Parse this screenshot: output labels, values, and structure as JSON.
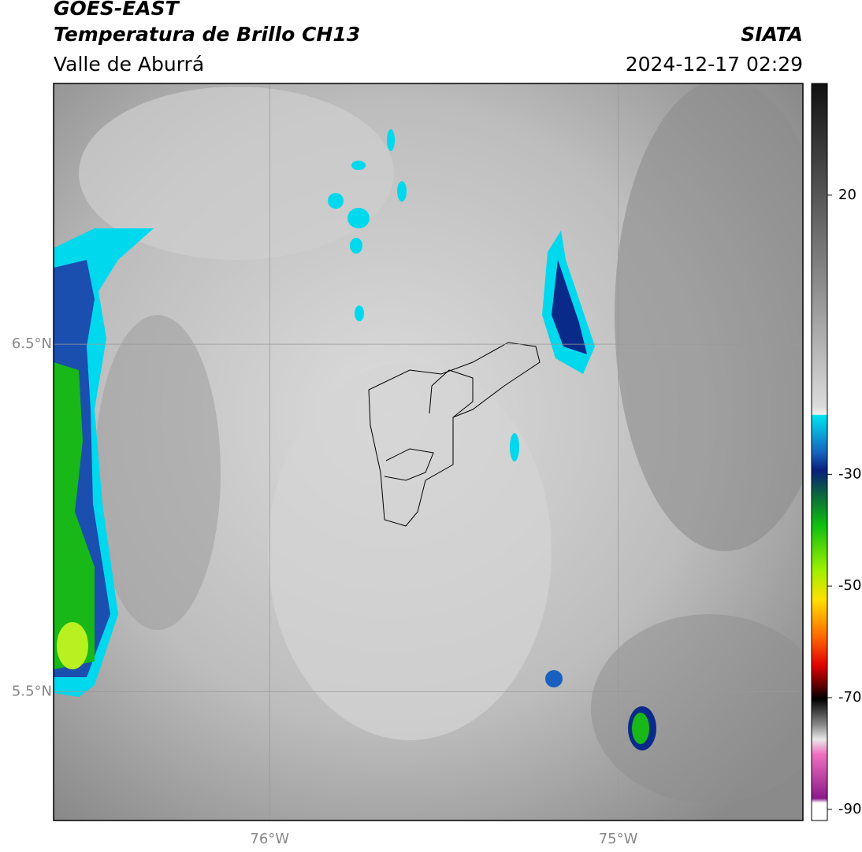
{
  "header": {
    "title": "GOES-EAST",
    "subtitle": "Temperatura de Brillo CH13",
    "region": "Valle de Aburrá",
    "source": "SIATA",
    "timestamp": "2024-12-17 02:29"
  },
  "map": {
    "xlim": [
      -76.62,
      -74.47
    ],
    "ylim": [
      5.13,
      7.25
    ],
    "xticks": [
      {
        "value": -76,
        "label": "76°W"
      },
      {
        "value": -75,
        "label": "75°W"
      }
    ],
    "yticks": [
      {
        "value": 6.5,
        "label": "6.5°N"
      },
      {
        "value": 5.5,
        "label": "5.5°N"
      }
    ]
  },
  "colorbar": {
    "lim": [
      -92,
      40
    ],
    "ticks": [
      20,
      -30,
      -50,
      -70,
      -90
    ]
  }
}
